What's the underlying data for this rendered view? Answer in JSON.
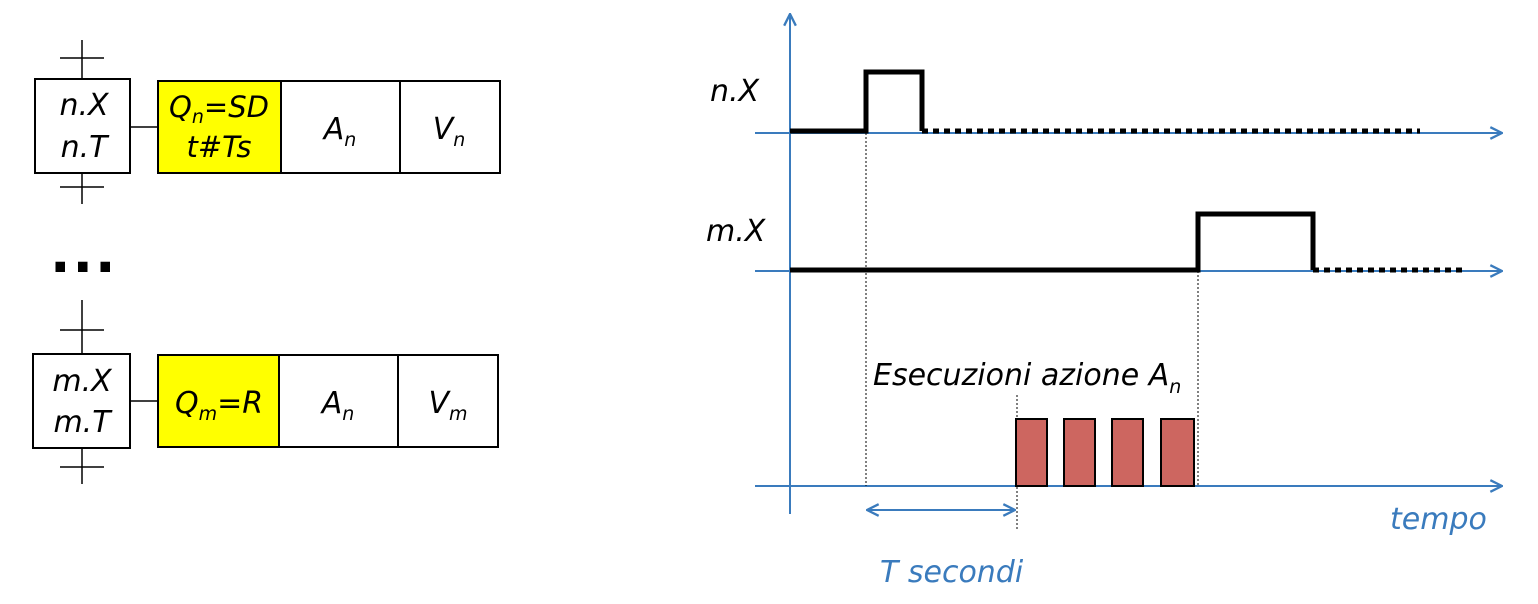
{
  "step_n": {
    "line1": "n.X",
    "line2": "n.T",
    "qualifier_main": "Q",
    "qualifier_sub": "n",
    "qualifier_rest": "=SD",
    "qualifier_line2": "t#Ts",
    "action_main": "A",
    "action_sub": "n",
    "variable_main": "V",
    "variable_sub": "n"
  },
  "ellipsis": "...",
  "step_m": {
    "line1": "m.X",
    "line2": "m.T",
    "qualifier_main": "Q",
    "qualifier_sub": "m",
    "qualifier_rest": "=R",
    "action_main": "A",
    "action_sub": "n",
    "variable_main": "V",
    "variable_sub": "m"
  },
  "timing": {
    "signal1_label": "n.X",
    "signal2_label": "m.X",
    "executions_label_main": "Esecuzioni azione A",
    "executions_label_sub": "n",
    "time_axis_label": "tempo",
    "delay_label": "T secondi"
  },
  "colors": {
    "qualifier_fill": "#ffff00",
    "pulse_fill": "#cd6660",
    "axis_blue": "#3a7bbd",
    "line_black": "#000000"
  }
}
